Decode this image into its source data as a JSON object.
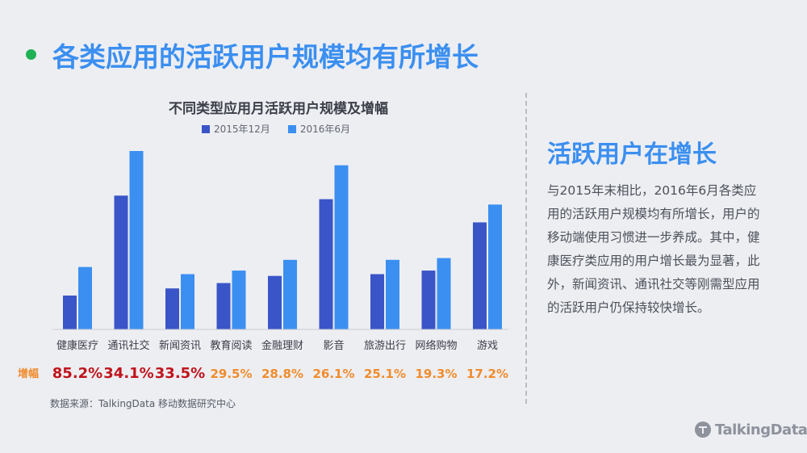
{
  "headline": "各类应用的活跃用户规模均有所增长",
  "chart_data": {
    "type": "bar",
    "title": "不同类型应用月活跃用户规模及增幅",
    "categories": [
      "健康医疗",
      "通讯社交",
      "新闻资讯",
      "教育阅读",
      "金融理财",
      "影音",
      "旅游出行",
      "网络购物",
      "游戏"
    ],
    "series": [
      {
        "name": "2015年12月",
        "color": "#3a55c8",
        "values": [
          19,
          75,
          23,
          26,
          30,
          73,
          31,
          33,
          60
        ]
      },
      {
        "name": "2016年6月",
        "color": "#3b8ff0",
        "values": [
          35,
          100,
          31,
          33,
          39,
          92,
          39,
          40,
          70
        ]
      }
    ],
    "ylim": [
      0,
      100
    ],
    "growth_label": "增幅",
    "growth": [
      "85.2%",
      "34.1%",
      "33.5%",
      "29.5%",
      "28.8%",
      "26.1%",
      "25.1%",
      "19.3%",
      "17.2%"
    ],
    "growth_colors": [
      "#c0141c",
      "#c0141c",
      "#c0141c",
      "#f08c2c",
      "#f08c2c",
      "#f08c2c",
      "#f08c2c",
      "#f08c2c",
      "#f08c2c"
    ]
  },
  "source": "数据来源：TalkingData 移动数据研究中心",
  "side": {
    "title": "活跃用户在增长",
    "text": "与2015年末相比，2016年6月各类应用的活跃用户规模均有所增长，用户的移动端使用习惯进一步养成。其中，健康医疗类应用的用户增长最为显著，此外，新闻资讯、通讯社交等刚需型应用的活跃用户仍保持较快增长。"
  },
  "logo": {
    "text": "TalkingData",
    "icon": "talkingdata-logo-icon"
  }
}
